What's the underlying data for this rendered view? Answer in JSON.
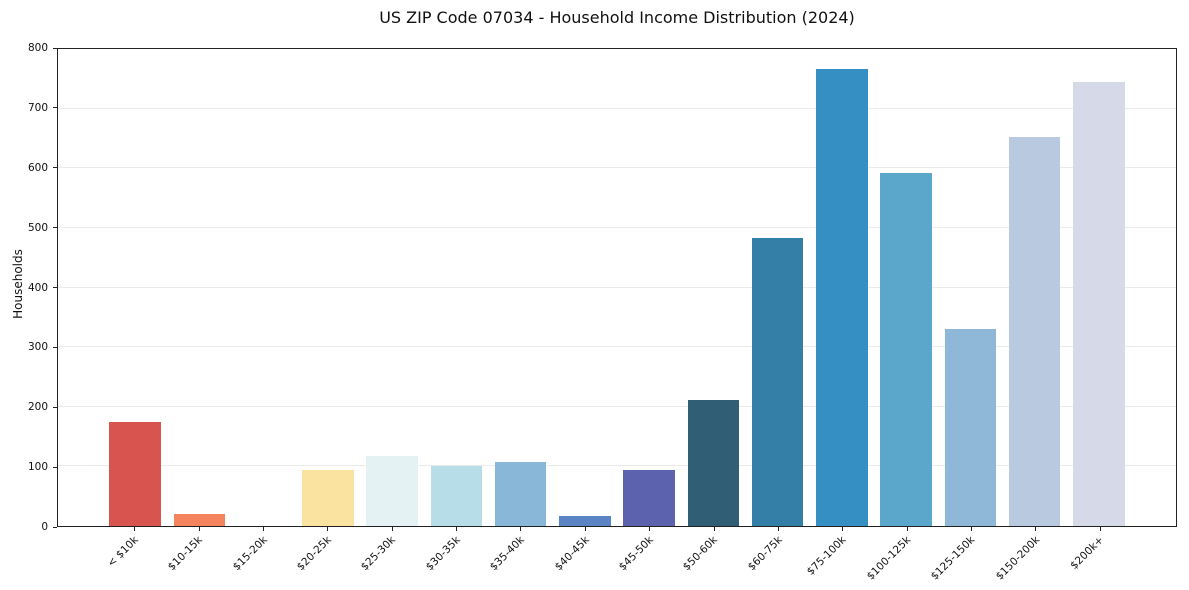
{
  "title": "US ZIP Code 07034 - Household Income Distribution (2024)",
  "chart_data": {
    "type": "bar",
    "title": "US ZIP Code 07034 - Household Income Distribution (2024)",
    "xlabel": "",
    "ylabel": "Households",
    "categories": [
      "< $10k",
      "$10-15k",
      "$15-20k",
      "$20-25k",
      "$25-30k",
      "$30-35k",
      "$35-40k",
      "$40-45k",
      "$45-50k",
      "$50-60k",
      "$60-75k",
      "$75-100k",
      "$100-125k",
      "$125-150k",
      "$150-200k",
      "$200k+"
    ],
    "values": [
      174,
      20,
      0,
      94,
      118,
      100,
      107,
      17,
      94,
      211,
      483,
      767,
      592,
      331,
      652,
      744
    ],
    "bar_colors": [
      "#d8544e",
      "#f4845e",
      "#f9c27d",
      "#fae3a0",
      "#e4f2f3",
      "#b6dde8",
      "#88b7d7",
      "#5b84c4",
      "#5c62ae",
      "#305e74",
      "#337fa8",
      "#368fc3",
      "#5ba7cb",
      "#8fb8d8",
      "#b8c9e0",
      "#d6d9e8"
    ],
    "ylim": [
      0,
      800
    ],
    "yticks": [
      0,
      100,
      200,
      300,
      400,
      500,
      600,
      700,
      800
    ],
    "grid": "horizontal",
    "legend": "none"
  },
  "style_colors": {
    "background": "#ffffff",
    "spine": "#222222",
    "grid": "#ebebeb",
    "text": "#111111"
  }
}
